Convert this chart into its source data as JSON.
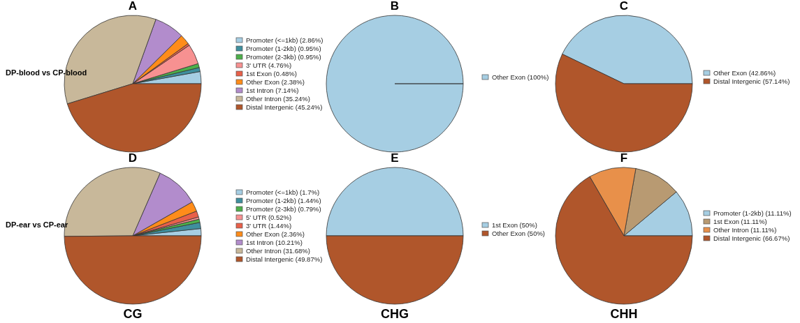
{
  "chart_data": [
    {
      "type": "pie",
      "title": "A",
      "legend": "right",
      "annotations": [
        "DP-blood vs CP-blood"
      ],
      "categories": [
        "Promoter (<=1kb) (2.86%)",
        "Promoter (1-2kb) (0.95%)",
        "Promoter (2-3kb) (0.95%)",
        "3' UTR (4.76%)",
        "1st Exon (0.48%)",
        "Other Exon (2.38%)",
        "1st Intron (7.14%)",
        "Other Intron (35.24%)",
        "Distal Intergenic (45.24%)"
      ],
      "values": [
        2.86,
        0.95,
        0.95,
        4.76,
        0.48,
        2.38,
        7.14,
        35.24,
        45.24
      ],
      "colors": [
        "#a6cee3",
        "#3f8f9e",
        "#4daf4a",
        "#f79191",
        "#e8604a",
        "#ff8c1a",
        "#b28ccc",
        "#c8b89a",
        "#b0562b"
      ]
    },
    {
      "type": "pie",
      "title": "B",
      "legend": "right",
      "categories": [
        "Other Exon (100%)"
      ],
      "values": [
        100
      ],
      "colors": [
        "#a6cee3"
      ]
    },
    {
      "type": "pie",
      "title": "C",
      "legend": "right",
      "categories": [
        "Other Exon (42.86%)",
        "Distal Intergenic (57.14%)"
      ],
      "values": [
        42.86,
        57.14
      ],
      "colors": [
        "#a6cee3",
        "#b0562b"
      ]
    },
    {
      "type": "pie",
      "title": "D",
      "legend": "right",
      "annotations": [
        "DP-ear vs CP-ear",
        "CG"
      ],
      "categories": [
        "Promoter (<=1kb) (1.7%)",
        "Promoter (1-2kb) (1.44%)",
        "Promoter (2-3kb) (0.79%)",
        "5' UTR (0.52%)",
        "3' UTR (1.44%)",
        "Other Exon (2.36%)",
        "1st Intron (10.21%)",
        "Other Intron (31.68%)",
        "Distal Intergenic (49.87%)"
      ],
      "values": [
        1.7,
        1.44,
        0.79,
        0.52,
        1.44,
        2.36,
        10.21,
        31.68,
        49.87
      ],
      "colors": [
        "#a6cee3",
        "#3f8f9e",
        "#4daf4a",
        "#f79191",
        "#e8604a",
        "#ff8c1a",
        "#b28ccc",
        "#c8b89a",
        "#b0562b"
      ]
    },
    {
      "type": "pie",
      "title": "E",
      "legend": "right",
      "annotations": [
        "CHG"
      ],
      "categories": [
        "1st Exon (50%)",
        "Other Exon (50%)"
      ],
      "values": [
        50,
        50
      ],
      "colors": [
        "#a6cee3",
        "#b0562b"
      ]
    },
    {
      "type": "pie",
      "title": "F",
      "legend": "right",
      "annotations": [
        "CHH"
      ],
      "categories": [
        "Promoter (1-2kb) (11.11%)",
        "1st Exon (11.11%)",
        "Other Intron (11.11%)",
        "Distal Intergenic (66.67%)"
      ],
      "values": [
        11.11,
        11.11,
        11.11,
        66.67
      ],
      "colors": [
        "#a6cee3",
        "#b89a72",
        "#e8904a",
        "#b0562b"
      ]
    }
  ]
}
